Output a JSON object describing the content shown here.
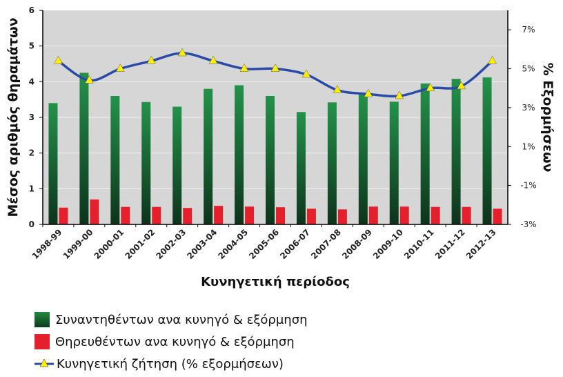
{
  "chart_data": {
    "type": "bar",
    "categories": [
      "1998-99",
      "1999-00",
      "2000-01",
      "2001-02",
      "2002-03",
      "2003-04",
      "2004-05",
      "2005-06",
      "2006-07",
      "2007-08",
      "2008-09",
      "2009-10",
      "2010-11",
      "2011-12",
      "2012-13"
    ],
    "series": [
      {
        "name": "Συναντηθέντων ανα κυνηγό & εξόρμηση",
        "type": "bar",
        "axis": "left",
        "color": "#1a7a38",
        "values": [
          3.4,
          4.25,
          3.6,
          3.43,
          3.3,
          3.8,
          3.9,
          3.6,
          3.15,
          3.42,
          3.65,
          3.44,
          3.95,
          4.08,
          4.12
        ]
      },
      {
        "name": "Θηρευθέντων ανα κυνηγό & εξόρμηση",
        "type": "bar",
        "axis": "left",
        "color": "#e3202b",
        "values": [
          0.47,
          0.7,
          0.49,
          0.49,
          0.46,
          0.52,
          0.5,
          0.48,
          0.44,
          0.42,
          0.5,
          0.5,
          0.49,
          0.49,
          0.44
        ]
      },
      {
        "name": "Κυνηγετική ζήτηση (% εξορμήσεων)",
        "type": "line",
        "axis": "right",
        "color": "#2a4aa8",
        "values": [
          5.4,
          4.4,
          5.0,
          5.4,
          5.8,
          5.4,
          5.0,
          5.0,
          4.7,
          3.9,
          3.7,
          3.6,
          4.0,
          4.1,
          5.4
        ]
      }
    ],
    "xlabel": "Κυνηγετική περίοδος",
    "ylabel": "Μέσος αριθμός θηραμάτων",
    "y2label": "% Εξορμήσεων",
    "ylim": [
      0,
      6
    ],
    "yticks": [
      "0",
      "1",
      "2",
      "3",
      "4",
      "5",
      "6"
    ],
    "y2lim": [
      -3,
      8
    ],
    "y2ticks": [
      {
        "value": -3,
        "label": "-3%"
      },
      {
        "value": -1,
        "label": "-1%"
      },
      {
        "value": 1,
        "label": "1%"
      },
      {
        "value": 3,
        "label": "3%"
      },
      {
        "value": 5,
        "label": "5%"
      },
      {
        "value": 7,
        "label": "7%"
      }
    ],
    "grid": true,
    "legend_position": "bottom-left"
  }
}
